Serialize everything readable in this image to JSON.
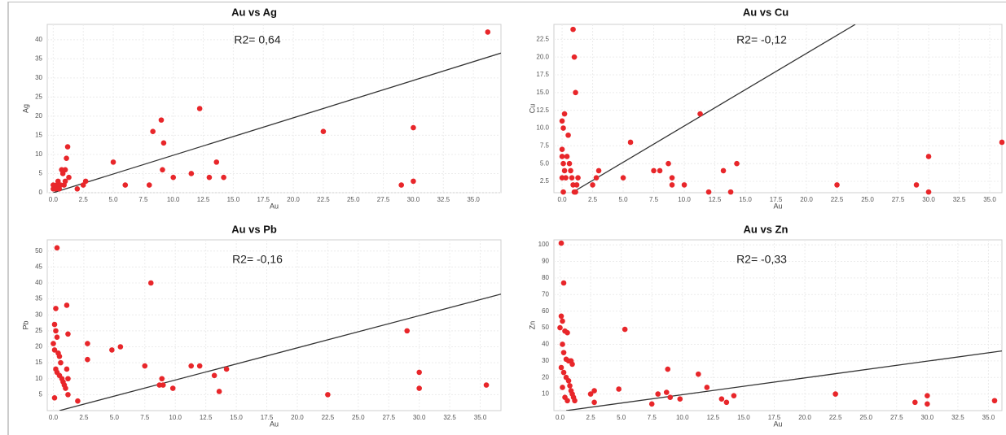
{
  "chart_data": [
    {
      "type": "scatter",
      "title": "Au vs Ag",
      "annotation": "R2= 0,64",
      "x_label": "Au",
      "y_label": "Ag",
      "color": "#e8262a",
      "x": [
        0,
        0,
        0.2,
        0.3,
        0.4,
        0.5,
        0.6,
        0.7,
        0.8,
        0.9,
        1,
        1,
        1.1,
        1.2,
        1.3,
        2,
        2.5,
        2.7,
        5,
        6,
        8,
        8.3,
        9,
        9.1,
        9.2,
        10,
        11.5,
        12.2,
        13,
        13.6,
        14.2,
        22.5,
        29,
        30,
        30,
        36.2
      ],
      "values": [
        1,
        2,
        1,
        2,
        3,
        1,
        2,
        6,
        5,
        2,
        3,
        6,
        9,
        12,
        4,
        1,
        2,
        3,
        8,
        2,
        2,
        16,
        19,
        6,
        13,
        4,
        5,
        22,
        4,
        8,
        4,
        16,
        2,
        17,
        3,
        42
      ],
      "trendline": {
        "x": [
          0,
          37.3
        ],
        "values": [
          0,
          36.5
        ]
      },
      "xlim": [
        -0.5,
        37.3
      ],
      "ylim": [
        0,
        44
      ],
      "xticks": [
        {
          "value": 0,
          "label": "0.0"
        },
        {
          "value": 2.5,
          "label": "2.5"
        },
        {
          "value": 5,
          "label": "5.0"
        },
        {
          "value": 7.5,
          "label": "7.5"
        },
        {
          "value": 10,
          "label": "10.0"
        },
        {
          "value": 12.5,
          "label": "12.5"
        },
        {
          "value": 15,
          "label": "15.0"
        },
        {
          "value": 17.5,
          "label": "17.5"
        },
        {
          "value": 20,
          "label": "20.0"
        },
        {
          "value": 22.5,
          "label": "22.5"
        },
        {
          "value": 25,
          "label": "25.0"
        },
        {
          "value": 27.5,
          "label": "27.5"
        },
        {
          "value": 30,
          "label": "30.0"
        },
        {
          "value": 32.5,
          "label": "32.5"
        },
        {
          "value": 35,
          "label": "35.0"
        }
      ],
      "yticks": [
        0,
        5,
        10,
        15,
        20,
        25,
        30,
        35,
        40
      ],
      "grid": true
    },
    {
      "type": "scatter",
      "title": "Au vs Cu",
      "annotation": "R2= -0,12",
      "x_label": "Au",
      "y_label": "Cu",
      "color": "#e8262a",
      "x": [
        0,
        0.1,
        0.2,
        0,
        0,
        0.1,
        0.2,
        0.3,
        0.5,
        0.4,
        0.6,
        0.7,
        0.8,
        0.9,
        1,
        1.1,
        1.2,
        1.3,
        0.9,
        1,
        1.1,
        0,
        0.1,
        2.5,
        2.8,
        3,
        5,
        5.6,
        7.5,
        8,
        8.7,
        9,
        9,
        10,
        11.3,
        12,
        13.2,
        13.8,
        14.3,
        22.5,
        29,
        30,
        30,
        36
      ],
      "values": [
        11,
        10,
        12,
        7,
        6,
        5,
        4,
        3,
        9,
        6,
        5,
        4,
        3,
        2,
        1,
        1,
        2,
        3,
        23.9,
        20,
        15,
        3,
        1,
        2,
        3,
        4,
        3,
        8,
        4,
        4,
        5,
        2,
        3,
        2,
        12,
        1,
        4,
        1,
        5,
        2,
        2,
        1,
        6,
        8
      ],
      "trendline": {
        "x": [
          0.8,
          24
        ],
        "values": [
          0.9,
          24.6
        ]
      },
      "xlim": [
        -0.67,
        36
      ],
      "ylim": [
        0.9,
        24.6
      ],
      "xticks": [
        {
          "value": 0,
          "label": "0.0"
        },
        {
          "value": 2.5,
          "label": "2.5"
        },
        {
          "value": 5,
          "label": "5.0"
        },
        {
          "value": 7.5,
          "label": "7.5"
        },
        {
          "value": 10,
          "label": "10.0"
        },
        {
          "value": 12.5,
          "label": "12.5"
        },
        {
          "value": 15,
          "label": "15.0"
        },
        {
          "value": 17.5,
          "label": "17.5"
        },
        {
          "value": 20,
          "label": "20.0"
        },
        {
          "value": 22.5,
          "label": "22.5"
        },
        {
          "value": 25,
          "label": "25.0"
        },
        {
          "value": 27.5,
          "label": "27.5"
        },
        {
          "value": 30,
          "label": "30.0"
        },
        {
          "value": 32.5,
          "label": "32.5"
        },
        {
          "value": 35,
          "label": "35.0"
        }
      ],
      "yticks": [
        {
          "value": 2.5,
          "label": "2.5"
        },
        {
          "value": 5,
          "label": "5.0"
        },
        {
          "value": 7.5,
          "label": "7.5"
        },
        {
          "value": 10,
          "label": "10.0"
        },
        {
          "value": 12.5,
          "label": "12.5"
        },
        {
          "value": 15,
          "label": "15.0"
        },
        {
          "value": 17.5,
          "label": "17.5"
        },
        {
          "value": 20,
          "label": "20.0"
        },
        {
          "value": 22.5,
          "label": "22.5"
        }
      ],
      "grid": true
    },
    {
      "type": "scatter",
      "title": "Au vs Pb",
      "annotation": "R2= -0,16",
      "x_label": "Au",
      "y_label": "Pb",
      "color": "#e8262a",
      "x": [
        0.3,
        0.2,
        0.1,
        0.2,
        0.3,
        0,
        0.1,
        0.4,
        0.5,
        0.6,
        0.2,
        0.3,
        0.5,
        0.7,
        0.8,
        0.9,
        1,
        0.1,
        1.1,
        1.2,
        1.1,
        1.2,
        1.2,
        2,
        2.8,
        2.8,
        4.8,
        5.5,
        7.5,
        8,
        8.7,
        8.9,
        9,
        9.8,
        11.3,
        12,
        13.2,
        13.6,
        14.2,
        22.5,
        29,
        30,
        30,
        35.5
      ],
      "values": [
        51,
        32,
        27,
        25,
        23,
        21,
        19,
        18,
        17,
        15,
        13,
        12,
        11,
        10,
        9,
        8,
        7,
        4,
        33,
        24,
        13,
        10,
        5,
        3,
        21,
        16,
        19,
        20,
        14,
        40,
        8,
        10,
        8,
        7,
        14,
        14,
        11,
        6,
        13,
        5,
        25,
        12,
        7,
        8
      ],
      "trendline": {
        "x": [
          0.5,
          36.7
        ],
        "values": [
          0,
          36.5
        ]
      },
      "xlim": [
        -0.5,
        36.7
      ],
      "ylim": [
        0,
        53.5
      ],
      "xticks": [
        {
          "value": 0,
          "label": "0.0"
        },
        {
          "value": 2.5,
          "label": "2.5"
        },
        {
          "value": 5,
          "label": "5.0"
        },
        {
          "value": 7.5,
          "label": "7.5"
        },
        {
          "value": 10,
          "label": "10.0"
        },
        {
          "value": 12.5,
          "label": "12.5"
        },
        {
          "value": 15,
          "label": "15.0"
        },
        {
          "value": 17.5,
          "label": "17.5"
        },
        {
          "value": 20,
          "label": "20.0"
        },
        {
          "value": 22.5,
          "label": "22.5"
        },
        {
          "value": 25,
          "label": "25.0"
        },
        {
          "value": 27.5,
          "label": "27.5"
        },
        {
          "value": 30,
          "label": "30.0"
        },
        {
          "value": 32.5,
          "label": "32.5"
        },
        {
          "value": 35,
          "label": "35.0"
        }
      ],
      "yticks": [
        5,
        10,
        15,
        20,
        25,
        30,
        35,
        40,
        45,
        50
      ],
      "grid": true
    },
    {
      "type": "scatter",
      "title": "Au vs Zn",
      "annotation": "R2= -0,33",
      "x_label": "Au",
      "y_label": "Zn",
      "color": "#e8262a",
      "x": [
        0.1,
        0.3,
        0.1,
        0.2,
        0,
        0.4,
        0.6,
        0.2,
        0.3,
        0.5,
        0.7,
        0.9,
        1,
        0.1,
        0.3,
        0.5,
        0.7,
        0.8,
        0.9,
        1,
        1.1,
        1.2,
        0.2,
        0.4,
        0.6,
        2.5,
        2.8,
        2.8,
        4.8,
        5.3,
        7.5,
        8,
        8.7,
        8.8,
        9,
        9.8,
        11.3,
        12,
        13.2,
        13.6,
        14.2,
        22.5,
        29,
        30,
        30,
        35.5
      ],
      "values": [
        101,
        77,
        57,
        54,
        50,
        48,
        47,
        40,
        35,
        31,
        30,
        30,
        28,
        26,
        23,
        20,
        18,
        15,
        12,
        10,
        8,
        6,
        14,
        8,
        6,
        10,
        12,
        5,
        13,
        49,
        4,
        10,
        11,
        25,
        8,
        7,
        22,
        14,
        7,
        5,
        9,
        10,
        5,
        9,
        4,
        6
      ],
      "trendline": {
        "x": [
          0.5,
          36.1
        ],
        "values": [
          0,
          36
        ]
      },
      "xlim": [
        -0.5,
        36.1
      ],
      "ylim": [
        0,
        103
      ],
      "xticks": [
        {
          "value": 0,
          "label": "0.0"
        },
        {
          "value": 2.5,
          "label": "2.5"
        },
        {
          "value": 5,
          "label": "5.0"
        },
        {
          "value": 7.5,
          "label": "7.5"
        },
        {
          "value": 10,
          "label": "10.0"
        },
        {
          "value": 12.5,
          "label": "12.5"
        },
        {
          "value": 15,
          "label": "15.0"
        },
        {
          "value": 17.5,
          "label": "17.5"
        },
        {
          "value": 20,
          "label": "20.0"
        },
        {
          "value": 22.5,
          "label": "22.5"
        },
        {
          "value": 25,
          "label": "25.0"
        },
        {
          "value": 27.5,
          "label": "27.5"
        },
        {
          "value": 30,
          "label": "30.0"
        },
        {
          "value": 32.5,
          "label": "32.5"
        },
        {
          "value": 35,
          "label": "35.0"
        }
      ],
      "yticks": [
        10,
        20,
        30,
        40,
        50,
        60,
        70,
        80,
        90,
        100
      ],
      "grid": true
    }
  ]
}
